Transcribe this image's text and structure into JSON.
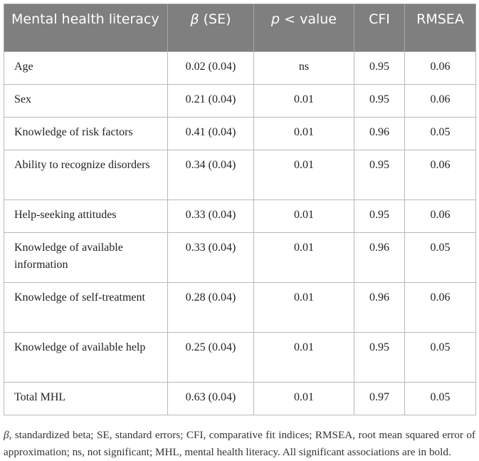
{
  "table": {
    "headers": {
      "col1": "Mental health literacy",
      "col2_symbol": "β",
      "col2_rest": " (SE)",
      "col3_symbol": "p",
      "col3_rest": " < value",
      "col4": "CFI",
      "col5": "RMSEA"
    },
    "rows": [
      {
        "label": "Age",
        "beta": "0.02 (0.04)",
        "p": "ns",
        "cfi": "0.95",
        "rmsea": "0.06"
      },
      {
        "label": "Sex",
        "beta": "0.21 (0.04)",
        "p": "0.01",
        "cfi": "0.95",
        "rmsea": "0.06"
      },
      {
        "label": "Knowledge of risk factors",
        "beta": "0.41 (0.04)",
        "p": "0.01",
        "cfi": "0.96",
        "rmsea": "0.05"
      },
      {
        "label": "Ability to recognize disorders",
        "beta": "0.34 (0.04)",
        "p": "0.01",
        "cfi": "0.95",
        "rmsea": "0.06"
      },
      {
        "label": "Help-seeking attitudes",
        "beta": "0.33 (0.04)",
        "p": "0.01",
        "cfi": "0.95",
        "rmsea": "0.06"
      },
      {
        "label": "Knowledge of available information",
        "beta": "0.33 (0.04)",
        "p": "0.01",
        "cfi": "0.96",
        "rmsea": "0.05"
      },
      {
        "label": "Knowledge of self-treatment",
        "beta": "0.28 (0.04)",
        "p": "0.01",
        "cfi": "0.96",
        "rmsea": "0.06"
      },
      {
        "label": "Knowledge of available help",
        "beta": "0.25 (0.04)",
        "p": "0.01",
        "cfi": "0.95",
        "rmsea": "0.05"
      },
      {
        "label": "Total MHL",
        "beta": "0.63 (0.04)",
        "p": "0.01",
        "cfi": "0.97",
        "rmsea": "0.05"
      }
    ]
  },
  "footnote": {
    "symbol": "β",
    "text": ", standardized beta; SE, standard errors; CFI, comparative fit indices; RMSEA, root mean squared error of approximation; ns, not significant; MHL, mental health literacy. All significant associations are in bold."
  },
  "colors": {
    "header_bg": "#7f7f7f",
    "header_text": "#ffffff",
    "border": "#b9b9b9",
    "body_text": "#222222"
  }
}
